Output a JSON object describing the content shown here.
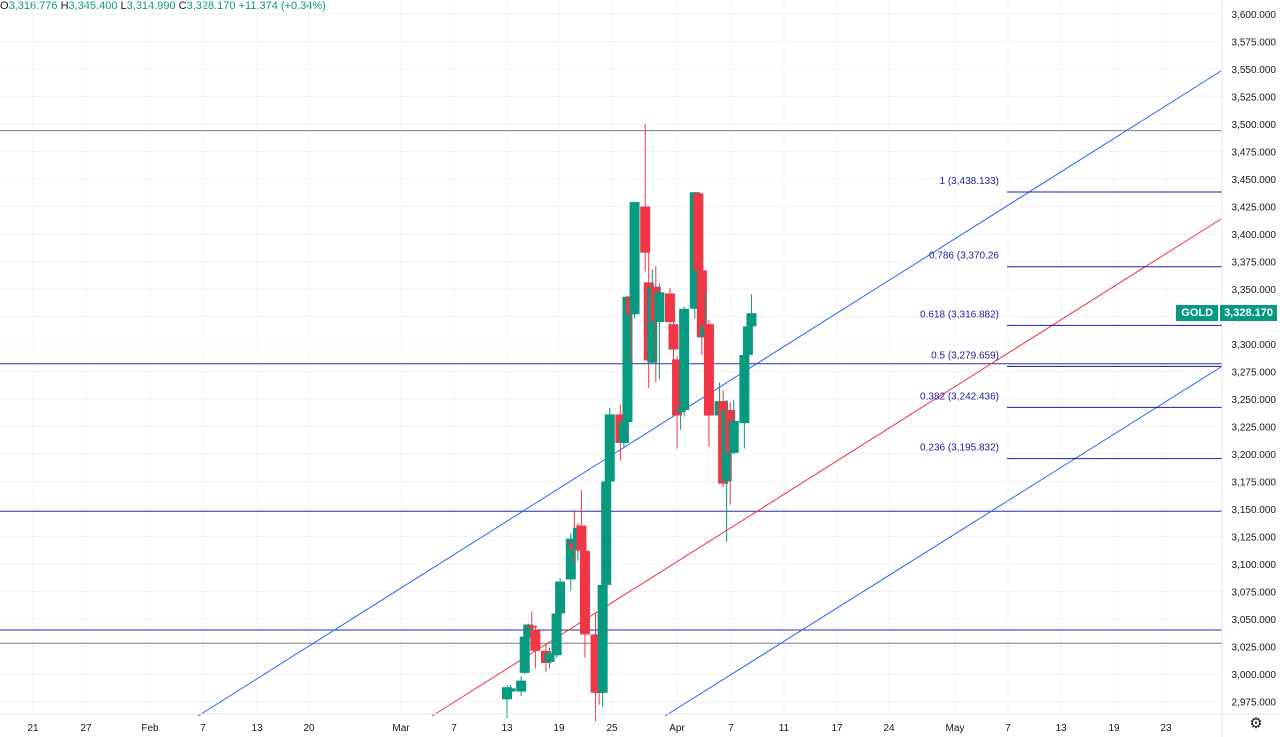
{
  "ohlc": {
    "o_label": "O",
    "o": "3,316.776",
    "h_label": "H",
    "h": "3,345.400",
    "l_label": "L",
    "l": "3,314.990",
    "c_label": "C",
    "c": "3,328.170",
    "change": "+11.374 (+0.34%)"
  },
  "symbol": "GOLD",
  "last_price": "3,328.170",
  "colors": {
    "up": "#089981",
    "down": "#f23645",
    "grid": "#f0f3fa",
    "channel": "#2962ff",
    "midline": "#f23645",
    "fib": "#1c1ca0",
    "level": "#2b2ba8",
    "gray_level": "#787b86"
  },
  "chart_data": {
    "type": "candlestick",
    "y_range": [
      2960,
      3610
    ],
    "y_ticks": [
      "3,600.000",
      "3,575.000",
      "3,550.000",
      "3,525.000",
      "3,500.000",
      "3,475.000",
      "3,450.000",
      "3,425.000",
      "3,400.000",
      "3,375.000",
      "3,350.000",
      "3,325.000",
      "3,300.000",
      "3,275.000",
      "3,250.000",
      "3,225.000",
      "3,200.000",
      "3,175.000",
      "3,150.000",
      "3,125.000",
      "3,100.000",
      "3,075.000",
      "3,050.000",
      "3,025.000",
      "3,000.000",
      "2,975.000"
    ],
    "x_labels": [
      "21",
      "27",
      "Feb",
      "7",
      "13",
      "20",
      "Mar",
      "7",
      "13",
      "19",
      "25",
      "Apr",
      "7",
      "11",
      "17",
      "24",
      "May",
      "7",
      "13",
      "19",
      "23"
    ],
    "candles": [
      {
        "date": "2025-03-13",
        "o": 2977,
        "h": 2990,
        "l": 2960,
        "c": 2988
      },
      {
        "date": "2025-03-14",
        "o": 2984,
        "h": 2990,
        "l": 2980,
        "c": 2987
      },
      {
        "date": "2025-03-17",
        "o": 2984,
        "h": 2998,
        "l": 2980,
        "c": 2994
      },
      {
        "date": "2025-03-18",
        "o": 3001,
        "h": 3035,
        "l": 3000,
        "c": 3034
      },
      {
        "date": "2025-03-19",
        "o": 3033,
        "h": 3046,
        "l": 3025,
        "c": 3045
      },
      {
        "date": "2025-03-20",
        "o": 3044,
        "h": 3057,
        "l": 3028,
        "c": 3042
      },
      {
        "date": "2025-03-21",
        "o": 3040,
        "h": 3044,
        "l": 3005,
        "c": 3021
      },
      {
        "date": "2025-03-24",
        "o": 3021,
        "h": 3027,
        "l": 3002,
        "c": 3010
      },
      {
        "date": "2025-03-25",
        "o": 3011,
        "h": 3024,
        "l": 3005,
        "c": 3019
      },
      {
        "date": "2025-03-26",
        "o": 3019,
        "h": 3031,
        "l": 3011,
        "c": 3019
      },
      {
        "date": "2025-03-27",
        "o": 3017,
        "h": 3058,
        "l": 3015,
        "c": 3055
      },
      {
        "date": "2025-03-28",
        "o": 3055,
        "h": 3087,
        "l": 3052,
        "c": 3084
      },
      {
        "date": "2025-03-31",
        "o": 3086,
        "h": 3128,
        "l": 3076,
        "c": 3123
      },
      {
        "date": "2025-04-01",
        "o": 3120,
        "h": 3149,
        "l": 3100,
        "c": 3113
      },
      {
        "date": "2025-04-02",
        "o": 3113,
        "h": 3137,
        "l": 3103,
        "c": 3133
      },
      {
        "date": "2025-04-03",
        "o": 3135,
        "h": 3167,
        "l": 3055,
        "c": 3112
      },
      {
        "date": "2025-04-04",
        "o": 3112,
        "h": 3135,
        "l": 3015,
        "c": 3036
      },
      {
        "date": "2025-04-07",
        "o": 3036,
        "h": 3055,
        "l": 2957,
        "c": 2983
      },
      {
        "date": "2025-04-08",
        "o": 2984,
        "h": 3023,
        "l": 2972,
        "c": 2983
      },
      {
        "date": "2025-04-09",
        "o": 2983,
        "h": 3099,
        "l": 2970,
        "c": 3081
      },
      {
        "date": "2025-04-10",
        "o": 3081,
        "h": 3177,
        "l": 3077,
        "c": 3175
      },
      {
        "date": "2025-04-11",
        "o": 3175,
        "h": 3242,
        "l": 3173,
        "c": 3236
      },
      {
        "date": "2025-04-14",
        "o": 3236,
        "h": 3245,
        "l": 3194,
        "c": 3210
      },
      {
        "date": "2025-04-15",
        "o": 3210,
        "h": 3230,
        "l": 3205,
        "c": 3229
      },
      {
        "date": "2025-04-16",
        "o": 3229,
        "h": 3344,
        "l": 3228,
        "c": 3343
      },
      {
        "date": "2025-04-17",
        "o": 3343,
        "h": 3358,
        "l": 3283,
        "c": 3327
      },
      {
        "date": "2025-04-18",
        "o": 3327,
        "h": 3429,
        "l": 3323,
        "c": 3429
      },
      {
        "date": "2025-04-21",
        "o": 3425,
        "h": 3500,
        "l": 3366,
        "c": 3383
      },
      {
        "date": "2025-04-22",
        "o": 3356,
        "h": 3387,
        "l": 3260,
        "c": 3285
      },
      {
        "date": "2025-04-23",
        "o": 3283,
        "h": 3368,
        "l": 3282,
        "c": 3352
      },
      {
        "date": "2025-04-24",
        "o": 3352,
        "h": 3371,
        "l": 3265,
        "c": 3320
      },
      {
        "date": "2025-04-25",
        "o": 3320,
        "h": 3355,
        "l": 3268,
        "c": 3347
      },
      {
        "date": "2025-04-28",
        "o": 3346,
        "h": 3351,
        "l": 3295,
        "c": 3320
      },
      {
        "date": "2025-04-29",
        "o": 3318,
        "h": 3328,
        "l": 3283,
        "c": 3295
      },
      {
        "date": "2025-04-30",
        "o": 3286,
        "h": 3289,
        "l": 3205,
        "c": 3235
      },
      {
        "date": "2025-05-01",
        "o": 3238,
        "h": 3267,
        "l": 3222,
        "c": 3240
      },
      {
        "date": "2025-05-02",
        "o": 3240,
        "h": 3334,
        "l": 3234,
        "c": 3332
      },
      {
        "date": "2025-05-05",
        "o": 3332,
        "h": 3438,
        "l": 3323,
        "c": 3438
      },
      {
        "date": "2025-05-06",
        "o": 3437,
        "h": 3438,
        "l": 3360,
        "c": 3367
      },
      {
        "date": "2025-05-07",
        "o": 3367,
        "h": 3416,
        "l": 3290,
        "c": 3306
      },
      {
        "date": "2025-05-08",
        "o": 3306,
        "h": 3347,
        "l": 3278,
        "c": 3316
      },
      {
        "date": "2025-05-09",
        "o": 3318,
        "h": 3322,
        "l": 3207,
        "c": 3235
      },
      {
        "date": "2025-05-12",
        "o": 3235,
        "h": 3265,
        "l": 3213,
        "c": 3248
      },
      {
        "date": "2025-05-13",
        "o": 3248,
        "h": 3258,
        "l": 3170,
        "c": 3173
      },
      {
        "date": "2025-05-14",
        "o": 3175,
        "h": 3249,
        "l": 3120,
        "c": 3240
      },
      {
        "date": "2025-05-15",
        "o": 3240,
        "h": 3247,
        "l": 3154,
        "c": 3201
      },
      {
        "date": "2025-05-16",
        "o": 3201,
        "h": 3249,
        "l": 3200,
        "c": 3230
      },
      {
        "date": "2025-05-19",
        "o": 3228,
        "h": 3296,
        "l": 3205,
        "c": 3290
      },
      {
        "date": "2025-05-20",
        "o": 3290,
        "h": 3321,
        "l": 3285,
        "c": 3316
      },
      {
        "date": "2025-05-21",
        "o": 3316,
        "h": 3345,
        "l": 3315,
        "c": 3328
      }
    ],
    "horizontal_levels": [
      {
        "price": 3494,
        "color": "#787b86"
      },
      {
        "price": 3282,
        "color": "#2b2ba8"
      },
      {
        "price": 3148,
        "color": "#2b2ba8"
      },
      {
        "price": 3040,
        "color": "#2b2ba8"
      },
      {
        "price": 3028,
        "color": "#787b86"
      }
    ],
    "fib_levels": [
      {
        "label": "1 (3,438.133)",
        "price": 3438.133
      },
      {
        "label": "0.786 (3,370.26",
        "price": 3370.26
      },
      {
        "label": "0.618 (3,316.882)",
        "price": 3316.882
      },
      {
        "label": "0.5 (3,279.659)",
        "price": 3279.659
      },
      {
        "label": "0.382 (3,242.436)",
        "price": 3242.436
      },
      {
        "label": "0.236 (3,195.832)",
        "price": 3195.832
      }
    ]
  }
}
